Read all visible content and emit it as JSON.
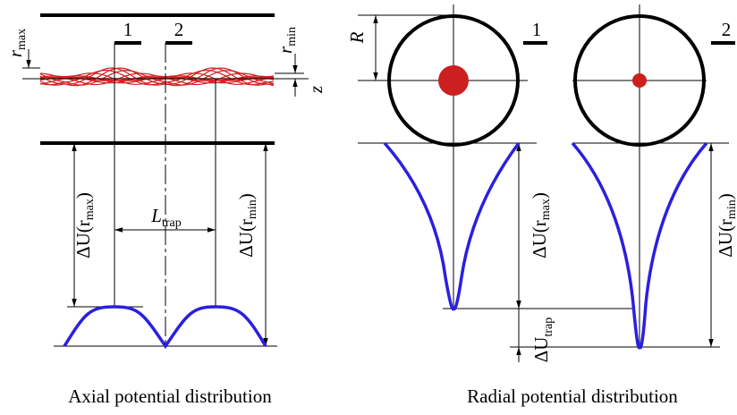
{
  "axial": {
    "r_max": {
      "main": "r",
      "sub": "max"
    },
    "r_min": {
      "main": "r",
      "sub": "min"
    },
    "marker_1": "1",
    "marker_2": "2",
    "z": "z",
    "l_trap": {
      "main": "L",
      "sub": "trap"
    },
    "du_max": {
      "prefix": "ΔU(r",
      "sub": "max",
      "suffix": ")"
    },
    "du_min": {
      "prefix": "ΔU(r",
      "sub": "min",
      "suffix": ")"
    },
    "caption": "Axial potential distribution"
  },
  "radial": {
    "r": "R",
    "marker_1": "1",
    "marker_2": "2",
    "du_max": {
      "prefix": "ΔU(r",
      "sub": "max",
      "suffix": ")"
    },
    "du_min": {
      "prefix": "ΔU(r",
      "sub": "min",
      "suffix": ")"
    },
    "du_trap": {
      "main": "ΔU",
      "sub": "trap"
    },
    "caption": "Radial potential distribution"
  }
}
